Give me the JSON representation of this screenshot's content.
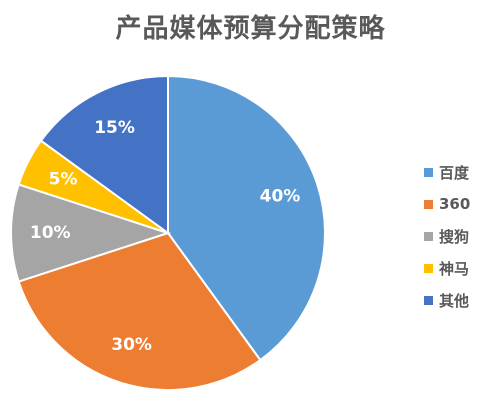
{
  "chart_data": {
    "type": "pie",
    "title": "产品媒体预算分配策略",
    "categories": [
      "百度",
      "360",
      "搜狗",
      "神马",
      "其他"
    ],
    "values": [
      40,
      30,
      10,
      5,
      15
    ],
    "data_labels": [
      "40%",
      "30%",
      "10%",
      "5%",
      "15%"
    ],
    "colors": [
      "#5B9BD5",
      "#ED7D31",
      "#A5A5A5",
      "#FFC000",
      "#4472C4"
    ],
    "start_angle_deg": 0,
    "direction": "clockwise",
    "legend": {
      "position": "right",
      "entries": [
        "百度",
        "360",
        "搜狗",
        "神马",
        "其他"
      ]
    }
  }
}
